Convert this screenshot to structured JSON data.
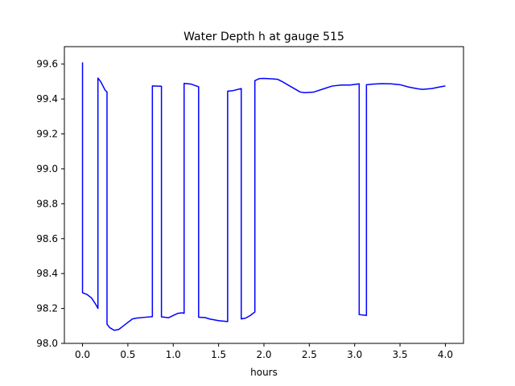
{
  "chart_data": {
    "type": "line",
    "title": "Water Depth h at gauge 515",
    "xlabel": "hours",
    "ylabel": "",
    "xlim": [
      -0.2,
      4.2
    ],
    "ylim": [
      98.0,
      99.7
    ],
    "xticks": [
      0.0,
      0.5,
      1.0,
      1.5,
      2.0,
      2.5,
      3.0,
      3.5,
      4.0
    ],
    "xtick_labels": [
      "0.0",
      "0.5",
      "1.0",
      "1.5",
      "2.0",
      "2.5",
      "3.0",
      "3.5",
      "4.0"
    ],
    "yticks": [
      98.0,
      98.2,
      98.4,
      98.6,
      98.8,
      99.0,
      99.2,
      99.4,
      99.6
    ],
    "ytick_labels": [
      "98.0",
      "98.2",
      "98.4",
      "98.6",
      "98.8",
      "99.0",
      "99.2",
      "99.4",
      "99.6"
    ],
    "grid": false,
    "series": [
      {
        "color": "#0000ff",
        "x": [
          0.0,
          0.0,
          0.05,
          0.1,
          0.15,
          0.17,
          0.17,
          0.2,
          0.25,
          0.27,
          0.27,
          0.3,
          0.35,
          0.4,
          0.45,
          0.5,
          0.55,
          0.6,
          0.7,
          0.77,
          0.77,
          0.87,
          0.87,
          0.95,
          1.0,
          1.05,
          1.1,
          1.12,
          1.12,
          1.2,
          1.28,
          1.28,
          1.35,
          1.4,
          1.5,
          1.6,
          1.6,
          1.65,
          1.75,
          1.75,
          1.8,
          1.85,
          1.9,
          1.9,
          1.95,
          2.0,
          2.1,
          2.15,
          2.2,
          2.3,
          2.4,
          2.45,
          2.55,
          2.65,
          2.75,
          2.85,
          2.95,
          3.05,
          3.05,
          3.13,
          3.13,
          3.2,
          3.3,
          3.4,
          3.5,
          3.6,
          3.7,
          3.75,
          3.85,
          3.95,
          4.0
        ],
        "y": [
          99.61,
          98.29,
          98.28,
          98.26,
          98.22,
          98.2,
          99.52,
          99.5,
          99.45,
          99.44,
          98.11,
          98.09,
          98.075,
          98.08,
          98.1,
          98.12,
          98.14,
          98.145,
          98.15,
          98.153,
          99.475,
          99.473,
          98.152,
          98.147,
          98.16,
          98.172,
          98.175,
          98.172,
          99.49,
          99.485,
          99.47,
          98.15,
          98.148,
          98.14,
          98.13,
          98.125,
          99.445,
          99.447,
          99.46,
          98.14,
          98.145,
          98.16,
          98.18,
          99.505,
          99.517,
          99.518,
          99.515,
          99.513,
          99.5,
          99.47,
          99.44,
          99.436,
          99.44,
          99.457,
          99.474,
          99.48,
          99.48,
          99.487,
          98.165,
          98.16,
          99.482,
          99.485,
          99.488,
          99.487,
          99.482,
          99.468,
          99.458,
          99.455,
          99.46,
          99.47,
          99.475
        ]
      }
    ]
  }
}
